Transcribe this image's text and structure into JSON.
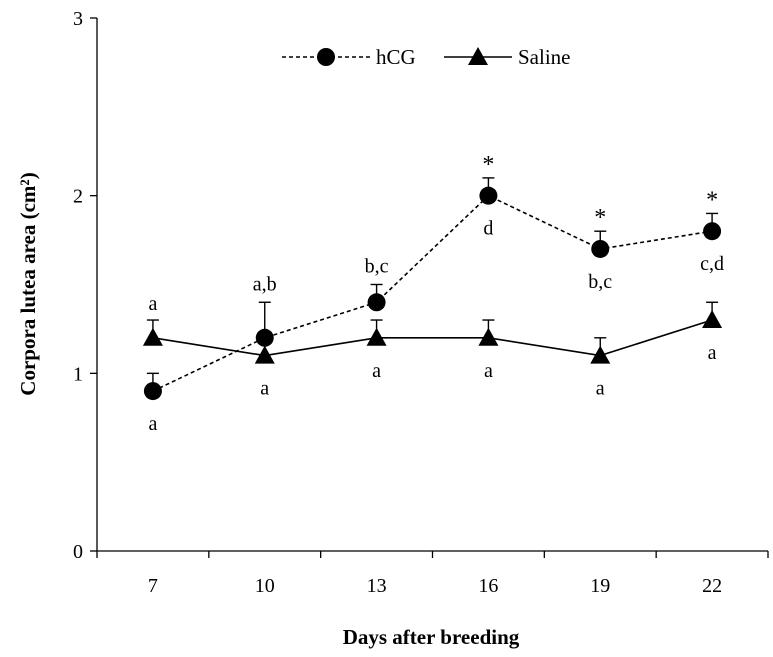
{
  "chart_data": {
    "type": "line",
    "title": "",
    "xlabel": "Days after breeding",
    "ylabel": "Corpora lutea area (cm²)",
    "categories": [
      "7",
      "10",
      "13",
      "16",
      "19",
      "22"
    ],
    "ylim": [
      0,
      3
    ],
    "yticks": [
      "0",
      "1",
      "2",
      "3"
    ],
    "grid": false,
    "legend_position": "top-center",
    "series": [
      {
        "name": "hCG",
        "marker": "circle",
        "line_style": "dashed",
        "values": [
          0.9,
          1.2,
          1.4,
          2.0,
          1.7,
          1.8
        ],
        "error": [
          0.1,
          0.2,
          0.1,
          0.1,
          0.1,
          0.1
        ],
        "letters": [
          "a",
          "a,b",
          "b,c",
          "d",
          "b,c",
          "c,d"
        ],
        "significance": [
          "",
          "",
          "",
          "*",
          "*",
          "*"
        ]
      },
      {
        "name": "Saline",
        "marker": "triangle",
        "line_style": "solid",
        "values": [
          1.2,
          1.1,
          1.2,
          1.2,
          1.1,
          1.3
        ],
        "error": [
          0.1,
          0.1,
          0.1,
          0.1,
          0.1,
          0.1
        ],
        "letters": [
          "a",
          "a",
          "a",
          "a",
          "a",
          "a"
        ]
      }
    ]
  }
}
